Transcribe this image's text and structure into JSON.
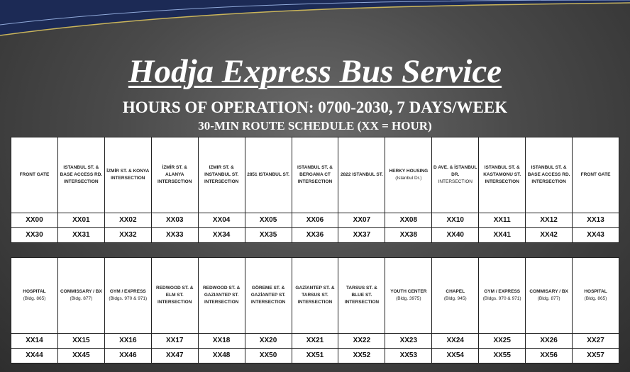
{
  "title": "Hodja Express Bus Service",
  "hours": "HOURS OF OPERATION:  0700-2030, 7 DAYS/WEEK",
  "subtitle": "30-MIN ROUTE SCHEDULE (XX = HOUR)",
  "tables": [
    {
      "headers": [
        {
          "main": "FRONT GATE"
        },
        {
          "main": "ISTANBUL ST. & BASE ACCESS RD. INTERSECTION"
        },
        {
          "main": "İZMİR ST. & KONYA INTERSECTION"
        },
        {
          "main": "İZMİR ST. & ALANYA INTERSECTION"
        },
        {
          "main": "IZMIR ST. & INSTANBUL ST. INTERSECTION"
        },
        {
          "main": "2851 ISTANBUL ST."
        },
        {
          "main": "ISTANBUL ST. & BERGAMA CT INTERSECTION"
        },
        {
          "main": "2822 ISTANBUL ST."
        },
        {
          "main": "HERKY HOUSING",
          "note": "(Istanbul Dr.)"
        },
        {
          "main": "D AVE. & İSTANBUL DR.",
          "note": "INTERSECTION"
        },
        {
          "main": "ISTANBUL ST. & KASTAMONU ST. INTERSECTION"
        },
        {
          "main": "ISTANBUL ST. & BASE ACCESS RD. INTERSECTION"
        },
        {
          "main": "FRONT GATE"
        }
      ],
      "rows": [
        [
          "XX00",
          "XX01",
          "XX02",
          "XX03",
          "XX04",
          "XX05",
          "XX06",
          "XX07",
          "XX08",
          "XX10",
          "XX11",
          "XX12",
          "XX13"
        ],
        [
          "XX30",
          "XX31",
          "XX32",
          "XX33",
          "XX34",
          "XX35",
          "XX36",
          "XX37",
          "XX38",
          "XX40",
          "XX41",
          "XX42",
          "XX43"
        ]
      ]
    },
    {
      "headers": [
        {
          "main": "HOSPITAL",
          "note": "(Bldg. 865)"
        },
        {
          "main": "COMMISSARY / BX",
          "note": "(Bldg. 877)"
        },
        {
          "main": "GYM / EXPRESS",
          "note": "(Bldgs. 970 & 971)"
        },
        {
          "main": "REDWOOD ST. & ELM ST. INTERSECTION"
        },
        {
          "main": "REDWOOD ST. & GAZIANTEP ST. INTERSECTION"
        },
        {
          "main": "GÖREME ST. & GAZİANTEP ST. INTERSECTION"
        },
        {
          "main": "GAZİANTEP ST. & TARSUS ST. INTERSECTION"
        },
        {
          "main": "TARSUS ST. & BLUE ST. INTERSECTION"
        },
        {
          "main": "YOUTH CENTER",
          "note": "(Bldg. 3975)"
        },
        {
          "main": "CHAPEL",
          "note": "(Bldg. 945)"
        },
        {
          "main": "GYM / EXPRESS",
          "note": "(Bldgs. 970 & 971)"
        },
        {
          "main": "COMMISARY / BX",
          "note": "(Bldg. 877)"
        },
        {
          "main": "HOSPITAL",
          "note": "(Bldg. 865)"
        }
      ],
      "rows": [
        [
          "XX14",
          "XX15",
          "XX16",
          "XX17",
          "XX18",
          "XX20",
          "XX21",
          "XX22",
          "XX23",
          "XX24",
          "XX25",
          "XX26",
          "XX27"
        ],
        [
          "XX44",
          "XX45",
          "XX46",
          "XX47",
          "XX48",
          "XX50",
          "XX51",
          "XX52",
          "XX53",
          "XX54",
          "XX55",
          "XX56",
          "XX57"
        ]
      ]
    }
  ]
}
